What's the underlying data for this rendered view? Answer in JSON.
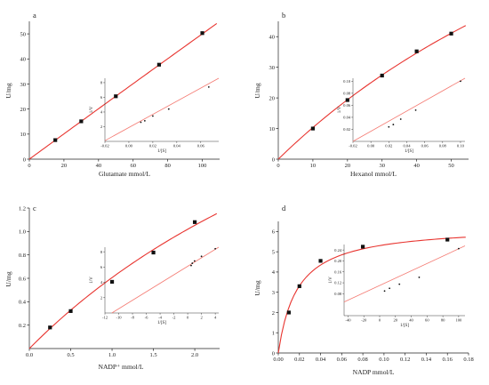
{
  "colors": {
    "fit": "#e8342f",
    "inset_fit": "#f47a72",
    "marker": "#111111",
    "axis": "#222222"
  },
  "chart_data": [
    {
      "panel": "a",
      "type": "scatter",
      "xlabel": "Glutamate mmol/L",
      "ylabel": "U/mg",
      "xlim": [
        0,
        110
      ],
      "ylim": [
        0,
        55
      ],
      "xticks": [
        "0",
        "20",
        "40",
        "60",
        "80",
        "100"
      ],
      "xtick_values": [
        0,
        20,
        40,
        60,
        80,
        100
      ],
      "yticks": [
        "0",
        "10",
        "20",
        "30",
        "40",
        "50"
      ],
      "ytick_values": [
        0,
        10,
        20,
        30,
        40,
        50
      ],
      "points": [
        [
          15,
          7.6
        ],
        [
          30,
          15.1
        ],
        [
          50,
          25.1
        ],
        [
          75,
          37.7
        ],
        [
          100,
          50.3
        ]
      ],
      "fit": {
        "kind": "mm",
        "vmax": 5000,
        "km": 9900
      },
      "inset": {
        "xlabel": "1/[S]",
        "ylabel": "1/V",
        "xlim": [
          -0.02,
          0.075
        ],
        "ylim": [
          0,
          8.6
        ],
        "xticks": [
          "-0.02",
          "0.00",
          "0.02",
          "0.04",
          "0.06"
        ],
        "xtick_values": [
          -0.02,
          0.0,
          0.02,
          0.04,
          0.06
        ],
        "yticks": [
          "2",
          "4",
          "6",
          "8"
        ],
        "ytick_values": [
          2,
          4,
          6,
          8
        ],
        "points": [
          [
            0.01,
            2.6
          ],
          [
            0.0133,
            2.8
          ],
          [
            0.02,
            3.45
          ],
          [
            0.0333,
            4.4
          ],
          [
            0.0667,
            7.4
          ]
        ],
        "line": [
          [
            -0.02,
            0.1
          ],
          [
            0.075,
            8.6
          ]
        ]
      }
    },
    {
      "panel": "b",
      "type": "scatter",
      "xlabel": "Hexanol mmol/L",
      "ylabel": "U/mg",
      "xlim": [
        0,
        55
      ],
      "ylim": [
        0,
        45
      ],
      "xticks": [
        "0",
        "10",
        "20",
        "30",
        "40",
        "50"
      ],
      "xtick_values": [
        0,
        10,
        20,
        30,
        40,
        50
      ],
      "yticks": [
        "0",
        "10",
        "20",
        "30",
        "40"
      ],
      "ytick_values": [
        0,
        10,
        20,
        30,
        40
      ],
      "points": [
        [
          10,
          10.0
        ],
        [
          20,
          19.3
        ],
        [
          30,
          27.3
        ],
        [
          40,
          35.2
        ],
        [
          50,
          41.0
        ]
      ],
      "fit": {
        "kind": "mm",
        "vmax": 162,
        "km": 147
      },
      "inset": {
        "xlabel": "1/[S]",
        "ylabel": "1/V",
        "xlim": [
          -0.02,
          0.105
        ],
        "ylim": [
          0,
          0.105
        ],
        "xticks": [
          "-0.02",
          "0.00",
          "0.02",
          "0.04",
          "0.06",
          "0.08",
          "0.10"
        ],
        "xtick_values": [
          -0.02,
          0.0,
          0.02,
          0.04,
          0.06,
          0.08,
          0.1
        ],
        "yticks": [
          "0.02",
          "0.04",
          "0.06",
          "0.08",
          "0.10"
        ],
        "ytick_values": [
          0.02,
          0.04,
          0.06,
          0.08,
          0.1
        ],
        "points": [
          [
            0.02,
            0.024
          ],
          [
            0.025,
            0.028
          ],
          [
            0.0333,
            0.037
          ],
          [
            0.05,
            0.052
          ],
          [
            0.1,
            0.1
          ]
        ],
        "line": [
          [
            -0.02,
            0.0
          ],
          [
            0.105,
            0.105
          ]
        ]
      }
    },
    {
      "panel": "c",
      "type": "scatter",
      "xlabel": "NADP⁺ mmol/L",
      "ylabel": "U/mg",
      "xlim": [
        0,
        2.3
      ],
      "ylim": [
        0,
        1.2
      ],
      "xticks": [
        "0.0",
        "0.5",
        "1.0",
        "1.5",
        "2.0"
      ],
      "xtick_values": [
        0,
        0.5,
        1.0,
        1.5,
        2.0
      ],
      "yticks": [
        "0.2",
        "0.4",
        "0.6",
        "0.8",
        "1.0",
        "1.2"
      ],
      "ytick_values": [
        0.2,
        0.4,
        0.6,
        0.8,
        1.0,
        1.2
      ],
      "points": [
        [
          0.25,
          0.18
        ],
        [
          0.5,
          0.32
        ],
        [
          1.0,
          0.57
        ],
        [
          1.5,
          0.82
        ],
        [
          2.0,
          1.08
        ]
      ],
      "fit": {
        "kind": "mm",
        "vmax": 4.0,
        "km": 5.6
      },
      "inset": {
        "xlabel": "1/[S]",
        "ylabel": "1/V",
        "xlim": [
          -12,
          4.5
        ],
        "ylim": [
          0,
          8.6
        ],
        "xticks": [
          "-12",
          "-10",
          "-8",
          "-6",
          "-4",
          "-2",
          "0",
          "2",
          "4"
        ],
        "xtick_values": [
          -12,
          -10,
          -8,
          -6,
          -4,
          -2,
          0,
          2,
          4
        ],
        "yticks": [
          "2",
          "4",
          "6",
          "8"
        ],
        "ytick_values": [
          2,
          4,
          6,
          8
        ],
        "points": [
          [
            0.5,
            6.2
          ],
          [
            0.67,
            6.5
          ],
          [
            1.0,
            6.8
          ],
          [
            2.0,
            7.4
          ],
          [
            4.0,
            8.4
          ]
        ],
        "line": [
          [
            -11,
            0.0
          ],
          [
            4.5,
            8.6
          ]
        ]
      }
    },
    {
      "panel": "d",
      "type": "scatter",
      "xlabel": "NADP mmol/L",
      "ylabel": "U/mg",
      "xlim": [
        0,
        0.18
      ],
      "ylim": [
        0,
        6.5
      ],
      "xticks": [
        "0.00",
        "0.02",
        "0.04",
        "0.06",
        "0.08",
        "0.10",
        "0.12",
        "0.14",
        "0.16",
        "0.18"
      ],
      "xtick_values": [
        0,
        0.02,
        0.04,
        0.06,
        0.08,
        0.1,
        0.12,
        0.14,
        0.16,
        0.18
      ],
      "yticks": [
        "0",
        "1",
        "2",
        "3",
        "4",
        "5",
        "6"
      ],
      "ytick_values": [
        0,
        1,
        2,
        3,
        4,
        5,
        6
      ],
      "points": [
        [
          0.01,
          2.0
        ],
        [
          0.02,
          3.3
        ],
        [
          0.04,
          4.55
        ],
        [
          0.08,
          5.25
        ],
        [
          0.16,
          5.6
        ]
      ],
      "fit": {
        "kind": "mm",
        "vmax": 6.3,
        "km": 0.018
      },
      "inset": {
        "xlabel": "1/[S]",
        "ylabel": "1/V",
        "xlim": [
          -45,
          108
        ],
        "ylim": [
          0,
          0.26
        ],
        "xticks": [
          "-40",
          "-20",
          "0",
          "20",
          "40",
          "60",
          "80",
          "100"
        ],
        "xtick_values": [
          -40,
          -20,
          0,
          20,
          40,
          60,
          80,
          100
        ],
        "yticks": [
          "0.08",
          "0.12",
          "0.16",
          "0.20",
          "0.24"
        ],
        "ytick_values": [
          0.08,
          0.12,
          0.16,
          0.2,
          0.24
        ],
        "points": [
          [
            6.25,
            0.09
          ],
          [
            12.5,
            0.1
          ],
          [
            25,
            0.115
          ],
          [
            50,
            0.14
          ],
          [
            100,
            0.245
          ]
        ],
        "line": [
          [
            -45,
            0.05
          ],
          [
            108,
            0.255
          ]
        ]
      }
    }
  ]
}
